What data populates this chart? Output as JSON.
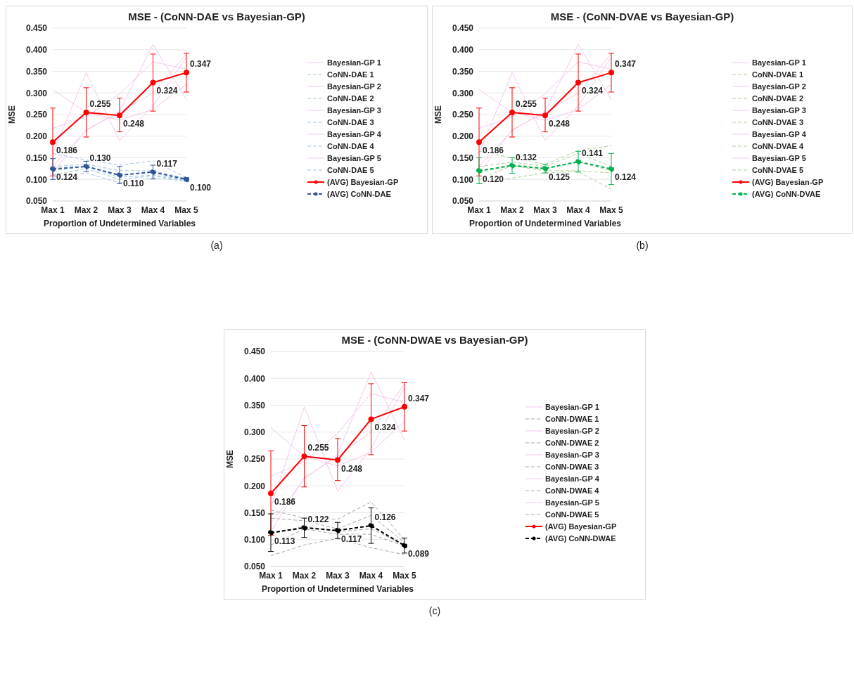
{
  "chart_data": [
    {
      "type": "line",
      "title": "MSE - (CoNN-DAE vs Bayesian-GP)",
      "xlabel": "Proportion of Undetermined Variables",
      "ylabel": "MSE",
      "annotations": [
        "(a)"
      ],
      "categories": [
        "Max 1",
        "Max 2",
        "Max 3",
        "Max 4",
        "Max 5"
      ],
      "ylim": [
        0.05,
        0.45
      ],
      "yticks": [
        {
          "value": 0.05,
          "label": "0.050"
        },
        {
          "value": 0.1,
          "label": "0.100"
        },
        {
          "value": 0.15,
          "label": "0.150"
        },
        {
          "value": 0.2,
          "label": "0.200"
        },
        {
          "value": 0.25,
          "label": "0.250"
        },
        {
          "value": 0.3,
          "label": "0.300"
        },
        {
          "value": 0.35,
          "label": "0.350"
        },
        {
          "value": 0.4,
          "label": "0.400"
        },
        {
          "value": 0.45,
          "label": "0.450"
        }
      ],
      "grid": "y",
      "legend": "right",
      "series": [
        {
          "name": "Bayesian-GP 1",
          "color": "#f5c6ef",
          "line_style": "solid",
          "marker": "none",
          "values": [
            0.308,
            0.255,
            0.237,
            0.262,
            0.32
          ]
        },
        {
          "name": "CoNN-DAE 1",
          "color": "#9dc3e6",
          "line_style": "dashed",
          "marker": "none",
          "values": [
            0.16,
            0.145,
            0.133,
            0.143,
            0.104
          ]
        },
        {
          "name": "Bayesian-GP 2",
          "color": "#f5c6ef",
          "line_style": "solid",
          "marker": "none",
          "values": [
            0.218,
            0.245,
            0.298,
            0.372,
            0.355
          ]
        },
        {
          "name": "CoNN-DAE 2",
          "color": "#9dc3e6",
          "line_style": "dashed",
          "marker": "none",
          "values": [
            0.13,
            0.135,
            0.12,
            0.12,
            0.102
          ]
        },
        {
          "name": "Bayesian-GP 3",
          "color": "#f5c6ef",
          "line_style": "solid",
          "marker": "none",
          "values": [
            0.16,
            0.347,
            0.19,
            0.27,
            0.383
          ]
        },
        {
          "name": "CoNN-DAE 3",
          "color": "#9dc3e6",
          "line_style": "dashed",
          "marker": "none",
          "values": [
            0.12,
            0.13,
            0.105,
            0.11,
            0.1
          ]
        },
        {
          "name": "Bayesian-GP 4",
          "color": "#f5c6ef",
          "line_style": "solid",
          "marker": "none",
          "values": [
            0.13,
            0.213,
            0.258,
            0.412,
            0.285
          ]
        },
        {
          "name": "CoNN-DAE 4",
          "color": "#9dc3e6",
          "line_style": "dashed",
          "marker": "none",
          "values": [
            0.11,
            0.125,
            0.1,
            0.108,
            0.098
          ]
        },
        {
          "name": "Bayesian-GP 5",
          "color": "#f5c6ef",
          "line_style": "solid",
          "marker": "none",
          "values": [
            0.115,
            0.215,
            0.255,
            0.3,
            0.39
          ]
        },
        {
          "name": "CoNN-DAE 5",
          "color": "#9dc3e6",
          "line_style": "dashed",
          "marker": "none",
          "values": [
            0.1,
            0.115,
            0.092,
            0.104,
            0.096
          ]
        },
        {
          "name": "(AVG) Bayesian-GP",
          "color": "#ff0000",
          "line_style": "solid",
          "marker": "circle",
          "values": [
            0.186,
            0.255,
            0.248,
            0.324,
            0.347
          ],
          "value_labels": [
            "0.186",
            "0.255",
            "0.248",
            "0.324",
            "0.347"
          ],
          "errors": [
            [
              0.108,
              0.265
            ],
            [
              0.198,
              0.312
            ],
            [
              0.21,
              0.288
            ],
            [
              0.258,
              0.39
            ],
            [
              0.302,
              0.392
            ]
          ]
        },
        {
          "name": "(AVG) CoNN-DAE",
          "color": "#2f5597",
          "line_style": "dashed",
          "marker": "circle",
          "values": [
            0.124,
            0.13,
            0.11,
            0.117,
            0.1
          ],
          "value_labels": [
            "0.124",
            "0.130",
            "0.110",
            "0.117",
            "0.100"
          ],
          "errors": [
            [
              0.1,
              0.148
            ],
            [
              0.118,
              0.142
            ],
            [
              0.09,
              0.13
            ],
            [
              0.101,
              0.133
            ],
            [
              0.096,
              0.104
            ]
          ]
        }
      ]
    },
    {
      "type": "line",
      "title": "MSE - (CoNN-DVAE vs Bayesian-GP)",
      "xlabel": "Proportion of Undetermined Variables",
      "ylabel": "MSE",
      "annotations": [
        "(b)"
      ],
      "categories": [
        "Max 1",
        "Max 2",
        "Max 3",
        "Max 4",
        "Max 5"
      ],
      "ylim": [
        0.05,
        0.45
      ],
      "yticks": [
        {
          "value": 0.05,
          "label": "0.050"
        },
        {
          "value": 0.1,
          "label": "0.100"
        },
        {
          "value": 0.15,
          "label": "0.150"
        },
        {
          "value": 0.2,
          "label": "0.200"
        },
        {
          "value": 0.25,
          "label": "0.250"
        },
        {
          "value": 0.3,
          "label": "0.300"
        },
        {
          "value": 0.35,
          "label": "0.350"
        },
        {
          "value": 0.4,
          "label": "0.400"
        },
        {
          "value": 0.45,
          "label": "0.450"
        }
      ],
      "grid": "y",
      "legend": "right",
      "series": [
        {
          "name": "Bayesian-GP 1",
          "color": "#f5c6ef",
          "line_style": "solid",
          "marker": "none",
          "values": [
            0.308,
            0.255,
            0.237,
            0.262,
            0.32
          ]
        },
        {
          "name": "CoNN-DVAE 1",
          "color": "#a9d18e",
          "line_style": "dashed",
          "marker": "none",
          "values": [
            0.165,
            0.15,
            0.135,
            0.167,
            0.178
          ]
        },
        {
          "name": "Bayesian-GP 2",
          "color": "#f5c6ef",
          "line_style": "solid",
          "marker": "none",
          "values": [
            0.218,
            0.245,
            0.298,
            0.372,
            0.355
          ]
        },
        {
          "name": "CoNN-DVAE 2",
          "color": "#a9d18e",
          "line_style": "dashed",
          "marker": "none",
          "values": [
            0.13,
            0.14,
            0.13,
            0.16,
            0.13
          ]
        },
        {
          "name": "Bayesian-GP 3",
          "color": "#f5c6ef",
          "line_style": "solid",
          "marker": "none",
          "values": [
            0.16,
            0.347,
            0.19,
            0.27,
            0.383
          ]
        },
        {
          "name": "CoNN-DVAE 3",
          "color": "#a9d18e",
          "line_style": "dashed",
          "marker": "none",
          "values": [
            0.115,
            0.135,
            0.125,
            0.14,
            0.12
          ]
        },
        {
          "name": "Bayesian-GP 4",
          "color": "#f5c6ef",
          "line_style": "solid",
          "marker": "none",
          "values": [
            0.13,
            0.213,
            0.258,
            0.412,
            0.285
          ]
        },
        {
          "name": "CoNN-DVAE 4",
          "color": "#a9d18e",
          "line_style": "dashed",
          "marker": "none",
          "values": [
            0.1,
            0.132,
            0.12,
            0.12,
            0.115
          ]
        },
        {
          "name": "Bayesian-GP 5",
          "color": "#f5c6ef",
          "line_style": "solid",
          "marker": "none",
          "values": [
            0.115,
            0.215,
            0.255,
            0.3,
            0.39
          ]
        },
        {
          "name": "CoNN-DVAE 5",
          "color": "#a9d18e",
          "line_style": "dashed",
          "marker": "none",
          "values": [
            0.09,
            0.103,
            0.115,
            0.118,
            0.077
          ]
        },
        {
          "name": "(AVG) Bayesian-GP",
          "color": "#ff0000",
          "line_style": "solid",
          "marker": "circle",
          "values": [
            0.186,
            0.255,
            0.248,
            0.324,
            0.347
          ],
          "value_labels": [
            "0.186",
            "0.255",
            "0.248",
            "0.324",
            "0.347"
          ],
          "errors": [
            [
              0.108,
              0.265
            ],
            [
              0.198,
              0.312
            ],
            [
              0.21,
              0.288
            ],
            [
              0.258,
              0.39
            ],
            [
              0.302,
              0.392
            ]
          ]
        },
        {
          "name": "(AVG) CoNN-DVAE",
          "color": "#00b050",
          "line_style": "dashed",
          "marker": "circle",
          "values": [
            0.12,
            0.132,
            0.125,
            0.141,
            0.124
          ],
          "value_labels": [
            "0.120",
            "0.132",
            "0.125",
            "0.141",
            "0.124"
          ],
          "errors": [
            [
              0.09,
              0.15
            ],
            [
              0.114,
              0.15
            ],
            [
              0.115,
              0.135
            ],
            [
              0.117,
              0.165
            ],
            [
              0.088,
              0.16
            ]
          ]
        }
      ]
    },
    {
      "type": "line",
      "title": "MSE - (CoNN-DWAE vs Bayesian-GP)",
      "xlabel": "Proportion of Undetermined Variables",
      "ylabel": "MSE",
      "annotations": [
        "(c)"
      ],
      "categories": [
        "Max 1",
        "Max 2",
        "Max 3",
        "Max 4",
        "Max 5"
      ],
      "ylim": [
        0.05,
        0.45
      ],
      "yticks": [
        {
          "value": 0.05,
          "label": "0.050"
        },
        {
          "value": 0.1,
          "label": "0.100"
        },
        {
          "value": 0.15,
          "label": "0.150"
        },
        {
          "value": 0.2,
          "label": "0.200"
        },
        {
          "value": 0.25,
          "label": "0.250"
        },
        {
          "value": 0.3,
          "label": "0.300"
        },
        {
          "value": 0.35,
          "label": "0.350"
        },
        {
          "value": 0.4,
          "label": "0.400"
        },
        {
          "value": 0.45,
          "label": "0.450"
        }
      ],
      "grid": "y",
      "legend": "right",
      "series": [
        {
          "name": "Bayesian-GP 1",
          "color": "#f5c6ef",
          "line_style": "solid",
          "marker": "none",
          "values": [
            0.308,
            0.255,
            0.237,
            0.262,
            0.32
          ]
        },
        {
          "name": "CoNN-DWAE 1",
          "color": "#a6a6a6",
          "line_style": "dashed",
          "marker": "none",
          "values": [
            0.155,
            0.14,
            0.138,
            0.17,
            0.1
          ]
        },
        {
          "name": "Bayesian-GP 2",
          "color": "#f5c6ef",
          "line_style": "solid",
          "marker": "none",
          "values": [
            0.218,
            0.245,
            0.298,
            0.372,
            0.355
          ]
        },
        {
          "name": "CoNN-DWAE 2",
          "color": "#a6a6a6",
          "line_style": "dashed",
          "marker": "none",
          "values": [
            0.14,
            0.135,
            0.12,
            0.145,
            0.095
          ]
        },
        {
          "name": "Bayesian-GP 3",
          "color": "#f5c6ef",
          "line_style": "solid",
          "marker": "none",
          "values": [
            0.16,
            0.347,
            0.19,
            0.27,
            0.383
          ]
        },
        {
          "name": "CoNN-DWAE 3",
          "color": "#a6a6a6",
          "line_style": "dashed",
          "marker": "none",
          "values": [
            0.11,
            0.125,
            0.115,
            0.12,
            0.09
          ]
        },
        {
          "name": "Bayesian-GP 4",
          "color": "#f5c6ef",
          "line_style": "solid",
          "marker": "none",
          "values": [
            0.13,
            0.213,
            0.258,
            0.412,
            0.285
          ]
        },
        {
          "name": "CoNN-DWAE 4",
          "color": "#a6a6a6",
          "line_style": "dashed",
          "marker": "none",
          "values": [
            0.09,
            0.12,
            0.11,
            0.11,
            0.088
          ]
        },
        {
          "name": "Bayesian-GP 5",
          "color": "#f5c6ef",
          "line_style": "solid",
          "marker": "none",
          "values": [
            0.115,
            0.215,
            0.255,
            0.3,
            0.39
          ]
        },
        {
          "name": "CoNN-DWAE 5",
          "color": "#a6a6a6",
          "line_style": "dashed",
          "marker": "none",
          "values": [
            0.07,
            0.09,
            0.102,
            0.085,
            0.072
          ]
        },
        {
          "name": "(AVG) Bayesian-GP",
          "color": "#ff0000",
          "line_style": "solid",
          "marker": "circle",
          "values": [
            0.186,
            0.255,
            0.248,
            0.324,
            0.347
          ],
          "value_labels": [
            "0.186",
            "0.255",
            "0.248",
            "0.324",
            "0.347"
          ],
          "errors": [
            [
              0.108,
              0.265
            ],
            [
              0.198,
              0.312
            ],
            [
              0.21,
              0.288
            ],
            [
              0.258,
              0.39
            ],
            [
              0.302,
              0.392
            ]
          ]
        },
        {
          "name": "(AVG) CoNN-DWAE",
          "color": "#000000",
          "line_style": "dashed",
          "marker": "circle",
          "values": [
            0.113,
            0.122,
            0.117,
            0.126,
            0.089
          ],
          "value_labels": [
            "0.113",
            "0.122",
            "0.117",
            "0.126",
            "0.089"
          ],
          "errors": [
            [
              0.078,
              0.148
            ],
            [
              0.104,
              0.14
            ],
            [
              0.102,
              0.132
            ],
            [
              0.093,
              0.159
            ],
            [
              0.075,
              0.103
            ]
          ]
        }
      ]
    }
  ]
}
